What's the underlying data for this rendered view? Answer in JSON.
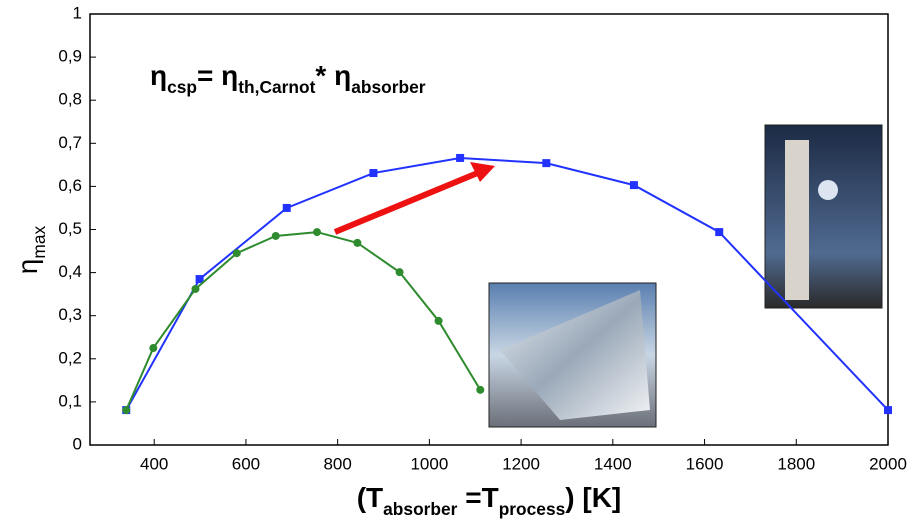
{
  "chart_data": {
    "type": "line",
    "formula": [
      {
        "text": "η"
      },
      {
        "text": "csp",
        "sub": true
      },
      {
        "text": "= η"
      },
      {
        "text": "th,Carnot",
        "sub": true
      },
      {
        "text": "* η"
      },
      {
        "text": "absorber",
        "sub": true
      }
    ],
    "x_label": [
      {
        "text": "(T"
      },
      {
        "text": "absorber",
        "sub": true
      },
      {
        "text": " =T"
      },
      {
        "text": "process",
        "sub": true
      },
      {
        "text": ") [K]"
      }
    ],
    "y_label": [
      {
        "text": "η"
      },
      {
        "text": "max",
        "sub": true
      }
    ],
    "xlim": [
      260,
      2000
    ],
    "ylim": [
      0,
      1
    ],
    "xticks": [
      400,
      600,
      800,
      1000,
      1200,
      1400,
      1600,
      1800,
      2000
    ],
    "yticks": [
      0,
      {
        "value": 0.1,
        "label": "0,1"
      },
      {
        "value": 0.2,
        "label": "0,2"
      },
      {
        "value": 0.3,
        "label": "0,3"
      },
      {
        "value": 0.4,
        "label": "0,4"
      },
      {
        "value": 0.5,
        "label": "0,5"
      },
      {
        "value": 0.6,
        "label": "0,6"
      },
      {
        "value": 0.7,
        "label": "0,7"
      },
      {
        "value": 0.8,
        "label": "0,8"
      },
      {
        "value": 0.9,
        "label": "0,9"
      },
      1
    ],
    "series": [
      {
        "color": "#2233ff",
        "marker": "square",
        "x": [
          339,
          499,
          689,
          878,
          1067,
          1255,
          1446,
          1632,
          2000
        ],
        "values": [
          0.081,
          0.385,
          0.55,
          0.631,
          0.666,
          0.654,
          0.603,
          0.494,
          0.081
        ]
      },
      {
        "color": "#2e8b2e",
        "marker": "circle",
        "x": [
          339,
          398,
          490,
          580,
          665,
          755,
          843,
          935,
          1020,
          1111
        ],
        "values": [
          0.081,
          0.225,
          0.362,
          0.445,
          0.485,
          0.494,
          0.469,
          0.401,
          0.288,
          0.128
        ]
      }
    ]
  }
}
